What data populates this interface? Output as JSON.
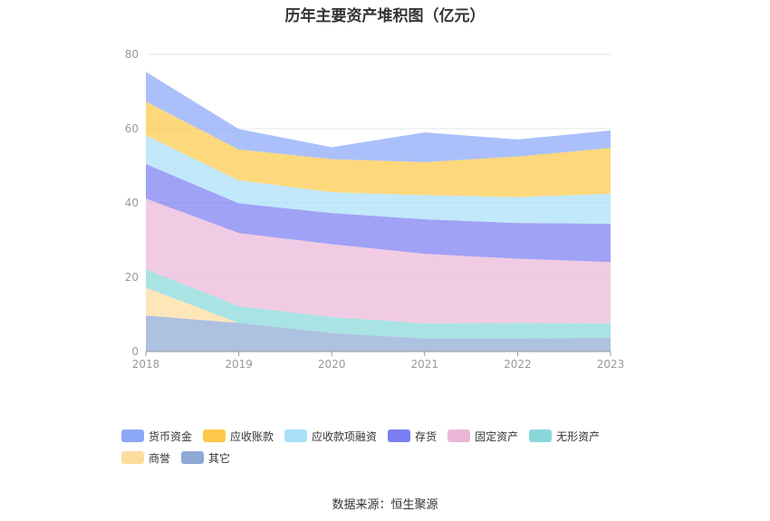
{
  "title": "历年主要资产堆积图（亿元）",
  "source_label": "数据来源：",
  "source_name": "恒生聚源",
  "colors": {
    "货币资金": "#8ba7f8",
    "应收账款": "#fdc94a",
    "应收款项融资": "#abdffa",
    "存货": "#7b7ef2",
    "固定资产": "#ebb7d8",
    "无形资产": "#88d8d9",
    "商誉": "#fddc9e",
    "其它": "#8ea9d6"
  },
  "chart_data": {
    "type": "area",
    "stacked": true,
    "title": "历年主要资产堆积图（亿元）",
    "x": [
      "2018",
      "2019",
      "2020",
      "2021",
      "2022",
      "2023"
    ],
    "ylim": [
      0,
      80
    ],
    "yticks": [
      0,
      20,
      40,
      60,
      80
    ],
    "grid": true,
    "legend_position": "bottom",
    "series": [
      {
        "name": "其它",
        "values": [
          9.7,
          7.7,
          5.0,
          3.5,
          3.5,
          3.7
        ]
      },
      {
        "name": "商誉",
        "values": [
          7.5,
          0.0,
          0.0,
          0.0,
          0.0,
          0.0
        ]
      },
      {
        "name": "无形资产",
        "values": [
          5.0,
          4.5,
          4.3,
          4.1,
          4.2,
          3.9
        ]
      },
      {
        "name": "固定资产",
        "values": [
          19.0,
          19.7,
          19.6,
          18.7,
          17.3,
          16.5
        ]
      },
      {
        "name": "存货",
        "values": [
          9.3,
          8.0,
          8.4,
          9.3,
          9.6,
          10.3
        ]
      },
      {
        "name": "应收款项融资",
        "values": [
          7.7,
          6.2,
          5.6,
          6.5,
          7.0,
          8.1
        ]
      },
      {
        "name": "应收账款",
        "values": [
          9.1,
          8.3,
          8.9,
          8.9,
          10.9,
          12.3
        ]
      },
      {
        "name": "货币资金",
        "values": [
          8.0,
          5.5,
          3.2,
          8.0,
          4.6,
          4.7
        ]
      }
    ],
    "legend_order": [
      "货币资金",
      "应收账款",
      "应收款项融资",
      "存货",
      "固定资产",
      "无形资产",
      "商誉",
      "其它"
    ]
  }
}
